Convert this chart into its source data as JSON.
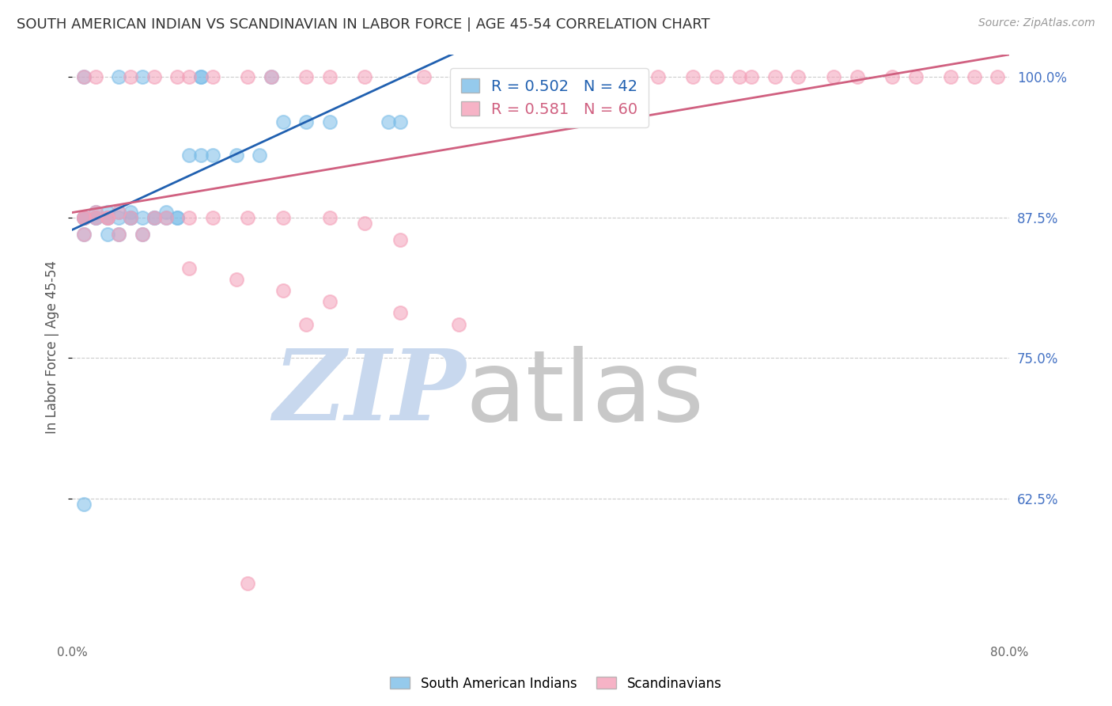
{
  "title": "SOUTH AMERICAN INDIAN VS SCANDINAVIAN IN LABOR FORCE | AGE 45-54 CORRELATION CHART",
  "source": "Source: ZipAtlas.com",
  "ylabel": "In Labor Force | Age 45-54",
  "xlim": [
    0.0,
    0.8
  ],
  "ylim": [
    0.5,
    1.02
  ],
  "xticks": [
    0.0,
    0.1,
    0.2,
    0.3,
    0.4,
    0.5,
    0.6,
    0.7,
    0.8
  ],
  "xticklabels": [
    "0.0%",
    "",
    "",
    "",
    "",
    "",
    "",
    "",
    "80.0%"
  ],
  "yticks_right": [
    0.625,
    0.75,
    0.875,
    1.0
  ],
  "ytick_right_labels": [
    "62.5%",
    "75.0%",
    "87.5%",
    "100.0%"
  ],
  "blue_label": "South American Indians",
  "pink_label": "Scandinavians",
  "blue_R": 0.502,
  "blue_N": 42,
  "pink_R": 0.581,
  "pink_N": 60,
  "blue_color": "#7bbde8",
  "pink_color": "#f4a0b8",
  "blue_line_color": "#2060b0",
  "pink_line_color": "#d06080",
  "watermark_zip": "ZIP",
  "watermark_atlas": "atlas",
  "watermark_color_zip": "#c8d8ee",
  "watermark_color_atlas": "#c8c8c8",
  "grid_color": "#cccccc",
  "blue_x": [
    0.01,
    0.04,
    0.06,
    0.11,
    0.11,
    0.17,
    0.01,
    0.01,
    0.01,
    0.01,
    0.02,
    0.02,
    0.02,
    0.03,
    0.03,
    0.03,
    0.03,
    0.04,
    0.04,
    0.04,
    0.05,
    0.05,
    0.05,
    0.06,
    0.06,
    0.07,
    0.07,
    0.08,
    0.08,
    0.09,
    0.09,
    0.1,
    0.11,
    0.12,
    0.14,
    0.16,
    0.18,
    0.2,
    0.22,
    0.27,
    0.28,
    0.01
  ],
  "blue_y": [
    1.0,
    1.0,
    1.0,
    1.0,
    1.0,
    1.0,
    0.875,
    0.875,
    0.875,
    0.86,
    0.875,
    0.875,
    0.88,
    0.875,
    0.875,
    0.88,
    0.86,
    0.875,
    0.88,
    0.86,
    0.875,
    0.875,
    0.88,
    0.875,
    0.86,
    0.875,
    0.875,
    0.875,
    0.88,
    0.875,
    0.875,
    0.93,
    0.93,
    0.93,
    0.93,
    0.93,
    0.96,
    0.96,
    0.96,
    0.96,
    0.96,
    0.62
  ],
  "pink_x": [
    0.01,
    0.02,
    0.05,
    0.07,
    0.09,
    0.1,
    0.12,
    0.15,
    0.17,
    0.2,
    0.22,
    0.25,
    0.3,
    0.33,
    0.38,
    0.42,
    0.47,
    0.48,
    0.5,
    0.53,
    0.55,
    0.57,
    0.58,
    0.6,
    0.62,
    0.65,
    0.67,
    0.7,
    0.72,
    0.75,
    0.77,
    0.79,
    0.01,
    0.01,
    0.01,
    0.02,
    0.02,
    0.03,
    0.03,
    0.04,
    0.04,
    0.05,
    0.06,
    0.07,
    0.08,
    0.1,
    0.12,
    0.15,
    0.18,
    0.22,
    0.25,
    0.28,
    0.1,
    0.14,
    0.18,
    0.22,
    0.28,
    0.33,
    0.2,
    0.15
  ],
  "pink_y": [
    1.0,
    1.0,
    1.0,
    1.0,
    1.0,
    1.0,
    1.0,
    1.0,
    1.0,
    1.0,
    1.0,
    1.0,
    1.0,
    1.0,
    1.0,
    1.0,
    1.0,
    1.0,
    1.0,
    1.0,
    1.0,
    1.0,
    1.0,
    1.0,
    1.0,
    1.0,
    1.0,
    1.0,
    1.0,
    1.0,
    1.0,
    1.0,
    0.875,
    0.875,
    0.86,
    0.875,
    0.88,
    0.875,
    0.875,
    0.88,
    0.86,
    0.875,
    0.86,
    0.875,
    0.875,
    0.875,
    0.875,
    0.875,
    0.875,
    0.875,
    0.87,
    0.855,
    0.83,
    0.82,
    0.81,
    0.8,
    0.79,
    0.78,
    0.78,
    0.55
  ]
}
